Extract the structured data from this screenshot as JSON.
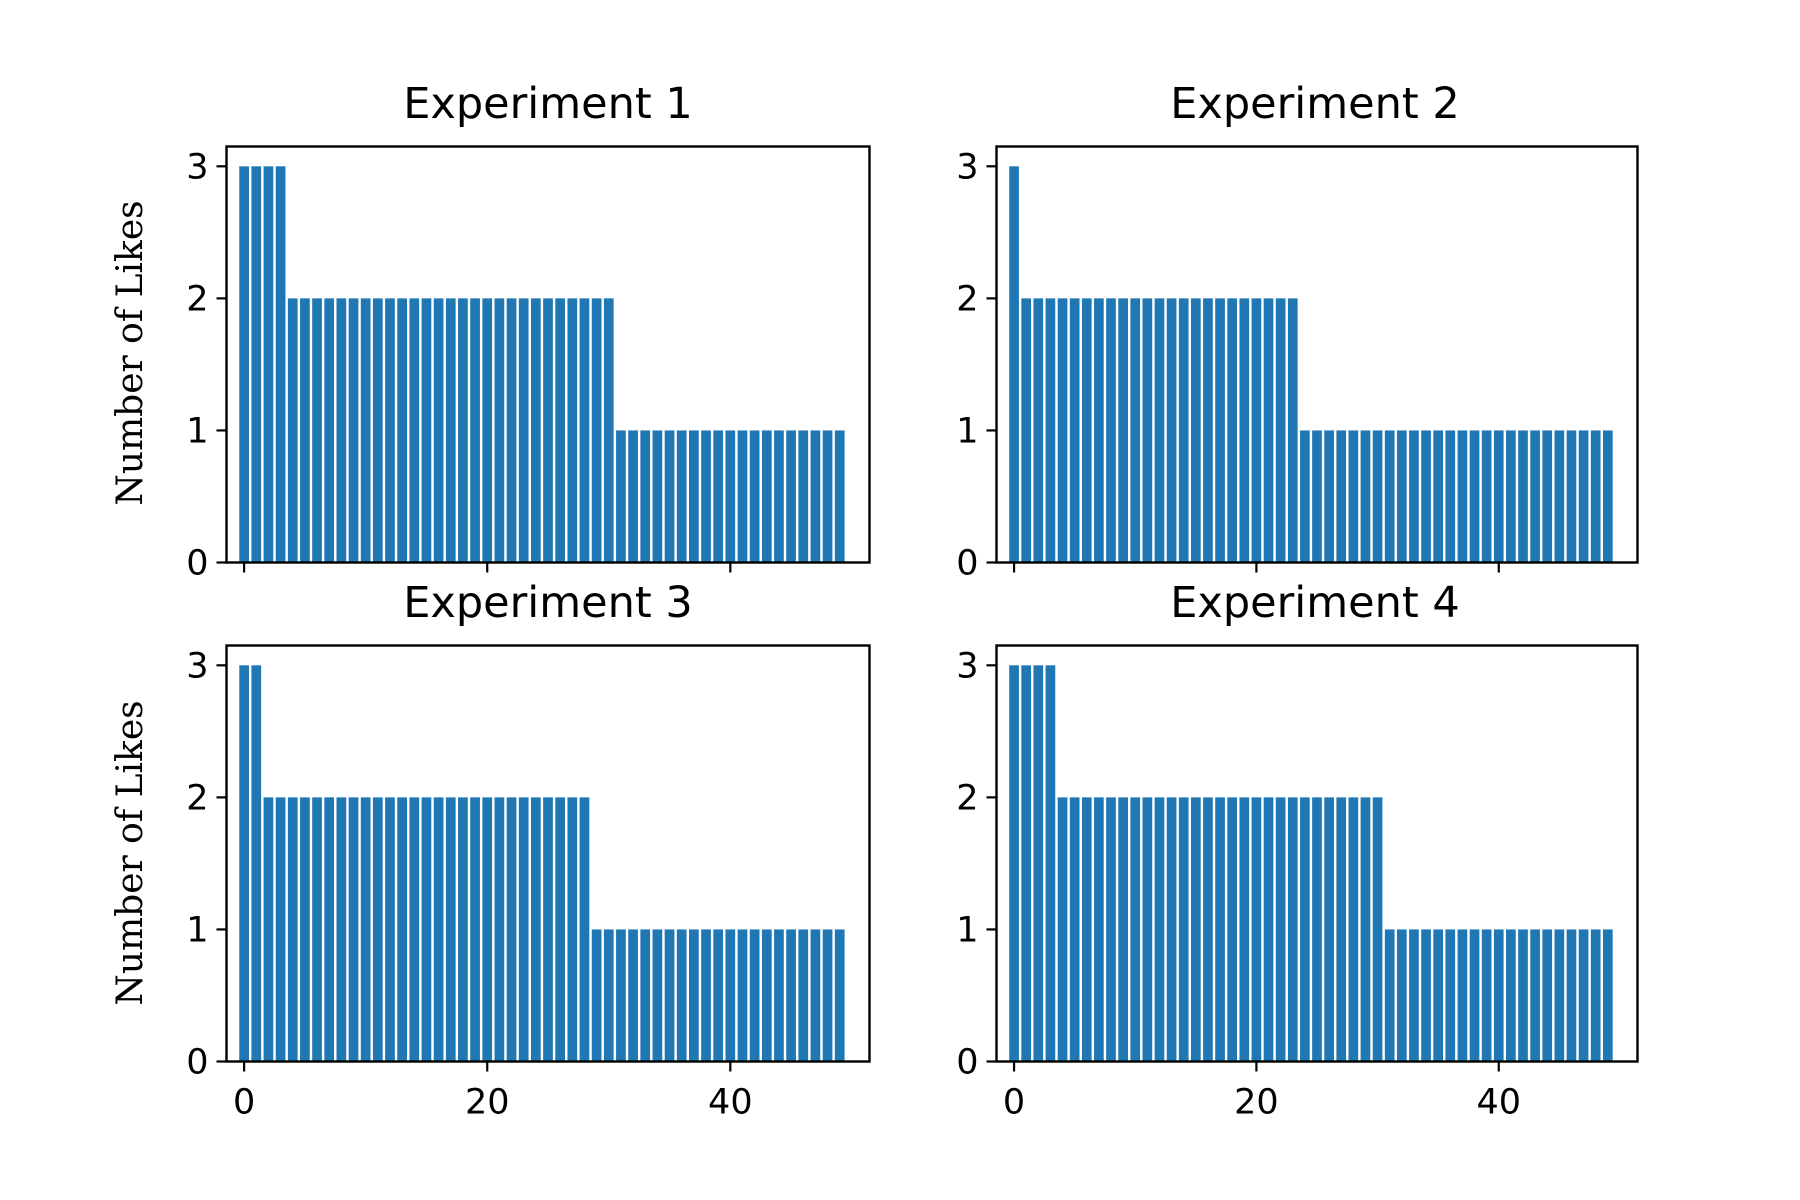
{
  "chart_data": [
    {
      "type": "bar",
      "title": "Experiment 1",
      "ylabel": "Number of Likes",
      "xlim": [
        -1.45,
        51.45
      ],
      "ylim": [
        0,
        3.15
      ],
      "yticks": [
        0,
        1,
        2,
        3
      ],
      "xticks": [
        0,
        20,
        40
      ],
      "show_xticklabels": false,
      "color": "#1f77b4",
      "x": [
        0,
        1,
        2,
        3,
        4,
        5,
        6,
        7,
        8,
        9,
        10,
        11,
        12,
        13,
        14,
        15,
        16,
        17,
        18,
        19,
        20,
        21,
        22,
        23,
        24,
        25,
        26,
        27,
        28,
        29,
        30,
        31,
        32,
        33,
        34,
        35,
        36,
        37,
        38,
        39,
        40,
        41,
        42,
        43,
        44,
        45,
        46,
        47,
        48,
        49
      ],
      "values": [
        3,
        3,
        3,
        3,
        2,
        2,
        2,
        2,
        2,
        2,
        2,
        2,
        2,
        2,
        2,
        2,
        2,
        2,
        2,
        2,
        2,
        2,
        2,
        2,
        2,
        2,
        2,
        2,
        2,
        2,
        2,
        1,
        1,
        1,
        1,
        1,
        1,
        1,
        1,
        1,
        1,
        1,
        1,
        1,
        1,
        1,
        1,
        1,
        1,
        1
      ]
    },
    {
      "type": "bar",
      "title": "Experiment 2",
      "ylabel": "",
      "xlim": [
        -1.45,
        51.45
      ],
      "ylim": [
        0,
        3.15
      ],
      "yticks": [
        0,
        1,
        2,
        3
      ],
      "xticks": [
        0,
        20,
        40
      ],
      "show_xticklabels": false,
      "color": "#1f77b4",
      "x": [
        0,
        1,
        2,
        3,
        4,
        5,
        6,
        7,
        8,
        9,
        10,
        11,
        12,
        13,
        14,
        15,
        16,
        17,
        18,
        19,
        20,
        21,
        22,
        23,
        24,
        25,
        26,
        27,
        28,
        29,
        30,
        31,
        32,
        33,
        34,
        35,
        36,
        37,
        38,
        39,
        40,
        41,
        42,
        43,
        44,
        45,
        46,
        47,
        48,
        49
      ],
      "values": [
        3,
        2,
        2,
        2,
        2,
        2,
        2,
        2,
        2,
        2,
        2,
        2,
        2,
        2,
        2,
        2,
        2,
        2,
        2,
        2,
        2,
        2,
        2,
        2,
        1,
        1,
        1,
        1,
        1,
        1,
        1,
        1,
        1,
        1,
        1,
        1,
        1,
        1,
        1,
        1,
        1,
        1,
        1,
        1,
        1,
        1,
        1,
        1,
        1,
        1
      ]
    },
    {
      "type": "bar",
      "title": "Experiment 3",
      "ylabel": "Number of Likes",
      "xlim": [
        -1.45,
        51.45
      ],
      "ylim": [
        0,
        3.15
      ],
      "yticks": [
        0,
        1,
        2,
        3
      ],
      "xticks": [
        0,
        20,
        40
      ],
      "show_xticklabels": true,
      "color": "#1f77b4",
      "x": [
        0,
        1,
        2,
        3,
        4,
        5,
        6,
        7,
        8,
        9,
        10,
        11,
        12,
        13,
        14,
        15,
        16,
        17,
        18,
        19,
        20,
        21,
        22,
        23,
        24,
        25,
        26,
        27,
        28,
        29,
        30,
        31,
        32,
        33,
        34,
        35,
        36,
        37,
        38,
        39,
        40,
        41,
        42,
        43,
        44,
        45,
        46,
        47,
        48,
        49
      ],
      "values": [
        3,
        3,
        2,
        2,
        2,
        2,
        2,
        2,
        2,
        2,
        2,
        2,
        2,
        2,
        2,
        2,
        2,
        2,
        2,
        2,
        2,
        2,
        2,
        2,
        2,
        2,
        2,
        2,
        2,
        1,
        1,
        1,
        1,
        1,
        1,
        1,
        1,
        1,
        1,
        1,
        1,
        1,
        1,
        1,
        1,
        1,
        1,
        1,
        1,
        1
      ]
    },
    {
      "type": "bar",
      "title": "Experiment 4",
      "ylabel": "",
      "xlim": [
        -1.45,
        51.45
      ],
      "ylim": [
        0,
        3.15
      ],
      "yticks": [
        0,
        1,
        2,
        3
      ],
      "xticks": [
        0,
        20,
        40
      ],
      "show_xticklabels": true,
      "color": "#1f77b4",
      "x": [
        0,
        1,
        2,
        3,
        4,
        5,
        6,
        7,
        8,
        9,
        10,
        11,
        12,
        13,
        14,
        15,
        16,
        17,
        18,
        19,
        20,
        21,
        22,
        23,
        24,
        25,
        26,
        27,
        28,
        29,
        30,
        31,
        32,
        33,
        34,
        35,
        36,
        37,
        38,
        39,
        40,
        41,
        42,
        43,
        44,
        45,
        46,
        47,
        48,
        49
      ],
      "values": [
        3,
        3,
        3,
        3,
        2,
        2,
        2,
        2,
        2,
        2,
        2,
        2,
        2,
        2,
        2,
        2,
        2,
        2,
        2,
        2,
        2,
        2,
        2,
        2,
        2,
        2,
        2,
        2,
        2,
        2,
        2,
        1,
        1,
        1,
        1,
        1,
        1,
        1,
        1,
        1,
        1,
        1,
        1,
        1,
        1,
        1,
        1,
        1,
        1,
        1
      ]
    }
  ]
}
